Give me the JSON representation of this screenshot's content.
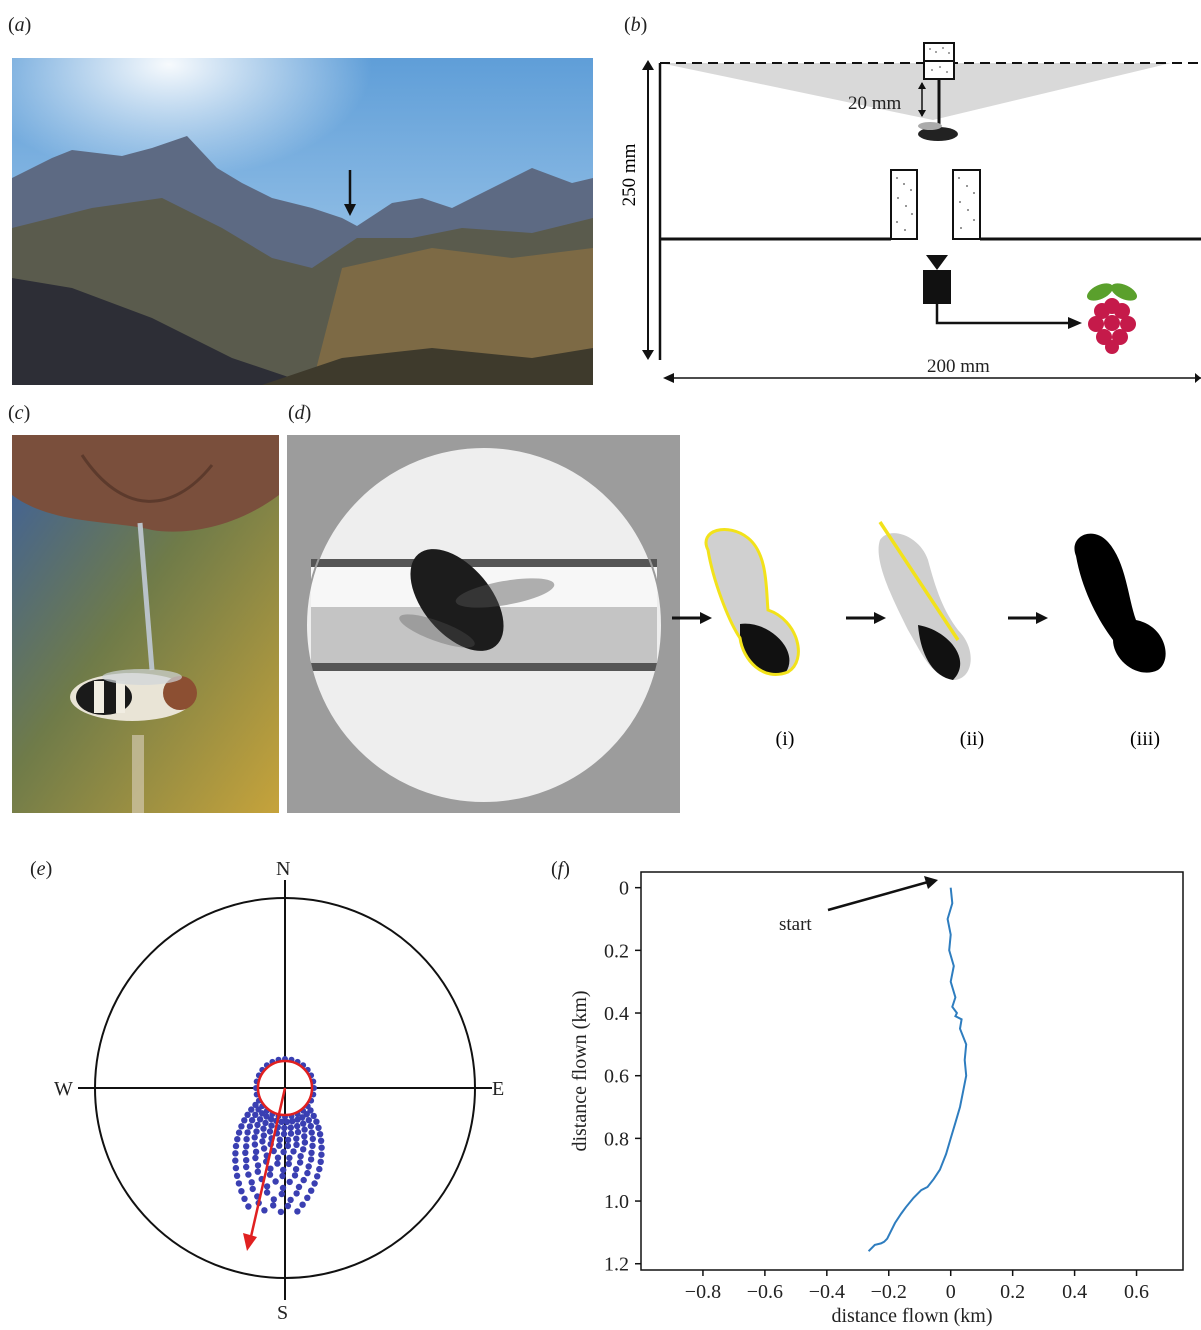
{
  "panels": {
    "a": {
      "label": "a"
    },
    "b": {
      "label": "b",
      "height_label": "250 mm",
      "gap_label": "20 mm",
      "width_label": "200 mm"
    },
    "c": {
      "label": "c"
    },
    "d": {
      "label": "d",
      "steps": [
        "(i)",
        "(ii)",
        "(iii)"
      ]
    },
    "e": {
      "label": "e",
      "compass": {
        "n": "N",
        "s": "S",
        "e": "E",
        "w": "W"
      }
    },
    "f": {
      "label": "f",
      "annotation": "start"
    }
  },
  "colors": {
    "trajectory": "#2e7dbf",
    "points": "#3a3fb2",
    "arrow": "#e02020",
    "outline": "#f2e21a",
    "rpi_red": "#c51a4a",
    "rpi_green": "#5aa02c"
  },
  "chart_data": {
    "type": "line",
    "title": "",
    "xlabel": "distance flown (km)",
    "ylabel": "distance flown (km)",
    "xlim": [
      -1.0,
      0.75
    ],
    "ylim": [
      1.22,
      -0.05
    ],
    "y_inverted": true,
    "xticks": [
      -0.8,
      -0.6,
      -0.4,
      -0.2,
      0,
      0.2,
      0.4,
      0.6
    ],
    "xtick_labels": [
      "−0.8",
      "−0.6",
      "−0.4",
      "−0.2",
      "0",
      "0.2",
      "0.4",
      "0.6"
    ],
    "yticks": [
      0,
      0.2,
      0.4,
      0.6,
      0.8,
      1.0,
      1.2
    ],
    "ytick_labels": [
      "0",
      "0.2",
      "0.4",
      "0.6",
      "0.8",
      "1.0",
      "1.2"
    ],
    "series": [
      {
        "x": [
          0.0,
          0.005,
          -0.01,
          0.0,
          -0.005,
          0.01,
          0.0,
          0.015,
          0.005,
          0.02,
          0.015,
          0.035,
          0.03,
          0.05,
          0.045,
          0.05,
          0.04,
          0.03,
          0.015,
          0.0,
          -0.015,
          -0.035,
          -0.055,
          -0.075,
          -0.095,
          -0.12,
          -0.145,
          -0.16,
          -0.18,
          -0.195,
          -0.205,
          -0.215,
          -0.225,
          -0.245,
          -0.255,
          -0.265
        ],
        "y": [
          0.0,
          0.05,
          0.1,
          0.15,
          0.2,
          0.25,
          0.3,
          0.35,
          0.38,
          0.4,
          0.41,
          0.42,
          0.45,
          0.5,
          0.55,
          0.6,
          0.65,
          0.7,
          0.75,
          0.8,
          0.85,
          0.9,
          0.93,
          0.955,
          0.965,
          0.99,
          1.02,
          1.04,
          1.07,
          1.1,
          1.12,
          1.13,
          1.135,
          1.14,
          1.15,
          1.16
        ]
      }
    ]
  }
}
